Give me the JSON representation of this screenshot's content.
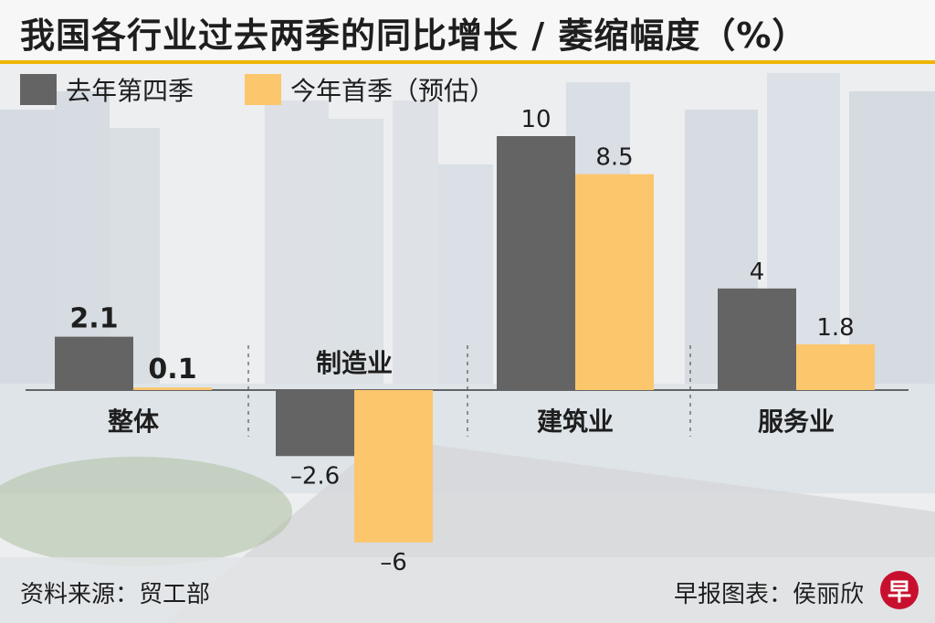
{
  "chart_data": {
    "type": "bar",
    "title": "我国各行业过去两季的同比增长 / 萎缩幅度（%）",
    "categories": [
      "整体",
      "制造业",
      "建筑业",
      "服务业"
    ],
    "series": [
      {
        "name": "去年第四季",
        "values": [
          2.1,
          -2.6,
          10,
          4
        ],
        "labels": [
          "2.1",
          "–2.6",
          "10",
          "4"
        ],
        "color": "#646464"
      },
      {
        "name": "今年首季（预估）",
        "values": [
          0.1,
          -6,
          8.5,
          1.8
        ],
        "labels": [
          "0.1",
          "–6",
          "8.5",
          "1.8"
        ],
        "color": "#fcc66c"
      }
    ],
    "ylim": [
      -6,
      10
    ],
    "grid": false,
    "legend_position": "top-left"
  },
  "footer": {
    "source": "资料来源：贸工部",
    "credit": "早报图表：侯丽欣",
    "logo_text": "早"
  }
}
